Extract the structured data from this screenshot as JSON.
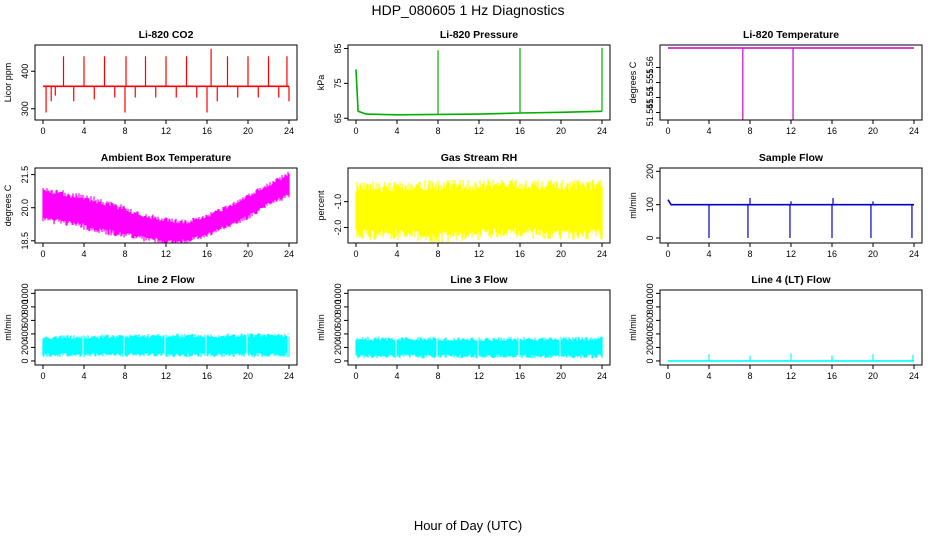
{
  "figure": {
    "title": "HDP_080605  1 Hz Diagnostics",
    "xlabel": "Hour of Day (UTC)"
  },
  "chart_data": [
    {
      "type": "line",
      "title": "Li-820 CO2",
      "ylabel": "Licor ppm",
      "color": "#ff0000",
      "xlim": [
        0,
        24
      ],
      "ylim": [
        270,
        470
      ],
      "xticks": [
        0,
        4,
        8,
        12,
        16,
        20,
        24
      ],
      "yticks": [
        300,
        400
      ],
      "series": [
        {
          "x": [
            0,
            24
          ],
          "values": [
            360,
            360
          ]
        }
      ],
      "spikes": [
        {
          "x": 0.3,
          "to": 290
        },
        {
          "x": 0.8,
          "to": 320
        },
        {
          "x": 1.2,
          "to": 335
        },
        {
          "x": 2.0,
          "to": 440
        },
        {
          "x": 3.0,
          "to": 320
        },
        {
          "x": 4.0,
          "to": 440
        },
        {
          "x": 5.0,
          "to": 325
        },
        {
          "x": 6.0,
          "to": 440
        },
        {
          "x": 7.0,
          "to": 330
        },
        {
          "x": 8.0,
          "to": 290
        },
        {
          "x": 8.1,
          "to": 440
        },
        {
          "x": 9.0,
          "to": 330
        },
        {
          "x": 10.0,
          "to": 440
        },
        {
          "x": 11.0,
          "to": 330
        },
        {
          "x": 12.0,
          "to": 440
        },
        {
          "x": 13.0,
          "to": 330
        },
        {
          "x": 14.0,
          "to": 440
        },
        {
          "x": 15.0,
          "to": 330
        },
        {
          "x": 16.0,
          "to": 290
        },
        {
          "x": 16.4,
          "to": 460
        },
        {
          "x": 17.0,
          "to": 320
        },
        {
          "x": 18.0,
          "to": 440
        },
        {
          "x": 19.0,
          "to": 330
        },
        {
          "x": 20.0,
          "to": 440
        },
        {
          "x": 21.0,
          "to": 330
        },
        {
          "x": 22.0,
          "to": 440
        },
        {
          "x": 23.0,
          "to": 330
        },
        {
          "x": 23.8,
          "to": 440
        },
        {
          "x": 24.0,
          "to": 320
        }
      ]
    },
    {
      "type": "line",
      "title": "Li-820 Pressure",
      "ylabel": "kPa",
      "color": "#00b000",
      "xlim": [
        0,
        24
      ],
      "ylim": [
        64.5,
        86
      ],
      "xticks": [
        0,
        4,
        8,
        12,
        16,
        20,
        24
      ],
      "yticks": [
        65,
        75,
        85
      ],
      "series": [
        {
          "x": [
            0,
            0.2,
            1,
            4,
            8,
            12,
            16,
            20,
            24
          ],
          "values": [
            79,
            67,
            66.2,
            66.0,
            66.1,
            66.2,
            66.5,
            66.7,
            67.0
          ]
        }
      ],
      "spikes": [
        {
          "x": 8.0,
          "to": 84.5
        },
        {
          "x": 16.0,
          "to": 85.2
        },
        {
          "x": 24.0,
          "to": 85.2
        }
      ]
    },
    {
      "type": "line",
      "title": "Li-820 Temperature",
      "ylabel": "degrees C",
      "color": "#cc00cc",
      "xlim": [
        0,
        24
      ],
      "ylim": [
        51.5425,
        51.5675
      ],
      "xticks": [
        0,
        4,
        8,
        12,
        16,
        20,
        24
      ],
      "yticks": [
        51.545,
        51.55,
        51.555,
        51.56
      ],
      "ytick_labels": [
        "51.545",
        "51.55",
        "51.555",
        "51.56"
      ],
      "series": [
        {
          "x": [
            0,
            24
          ],
          "values": [
            51.5665,
            51.5665
          ]
        }
      ],
      "spikes": [
        {
          "x": 7.3,
          "to": 51.5425
        },
        {
          "x": 12.2,
          "to": 51.5425
        }
      ]
    },
    {
      "type": "area",
      "title": "Ambient Box Temperature",
      "ylabel": "degrees C",
      "color": "#ff00ff",
      "xlim": [
        0,
        24
      ],
      "ylim": [
        18.4,
        21.8
      ],
      "xticks": [
        0,
        4,
        8,
        12,
        16,
        20,
        24
      ],
      "yticks": [
        18.5,
        20.0,
        21.5
      ],
      "ytick_labels": [
        "18.5",
        "20.0",
        "21.5"
      ],
      "x": [
        0,
        2,
        4,
        6,
        8,
        10,
        12,
        14,
        16,
        18,
        20,
        22,
        24
      ],
      "upper": [
        20.7,
        20.6,
        20.4,
        20.2,
        19.9,
        19.6,
        19.4,
        19.3,
        19.6,
        20.0,
        20.5,
        21.0,
        21.5
      ],
      "lower": [
        19.5,
        19.4,
        19.2,
        19.0,
        18.8,
        18.6,
        18.5,
        18.5,
        18.8,
        19.2,
        19.6,
        20.2,
        20.6
      ]
    },
    {
      "type": "area",
      "title": "Gas Stream RH",
      "ylabel": "percent",
      "color": "#ffff00",
      "xlim": [
        0,
        24
      ],
      "ylim": [
        -2.6,
        0.3
      ],
      "xticks": [
        0,
        4,
        8,
        12,
        16,
        20,
        24
      ],
      "yticks": [
        -2.0,
        -1.0
      ],
      "ytick_labels": [
        "-2.0",
        "-1.0"
      ],
      "x": [
        0,
        4,
        8,
        12,
        16,
        20,
        24
      ],
      "upper": [
        -0.5,
        -0.5,
        -0.45,
        -0.45,
        -0.4,
        -0.45,
        -0.45
      ],
      "lower": [
        -2.2,
        -2.2,
        -2.3,
        -2.2,
        -2.1,
        -2.2,
        -2.2
      ]
    },
    {
      "type": "line",
      "title": "Sample Flow",
      "ylabel": "ml/min",
      "color": "#0000cc",
      "xlim": [
        0,
        24
      ],
      "ylim": [
        -15,
        210
      ],
      "xticks": [
        0,
        4,
        8,
        12,
        16,
        20,
        24
      ],
      "yticks": [
        0,
        100,
        200
      ],
      "series": [
        {
          "x": [
            0,
            0.3,
            24
          ],
          "values": [
            115,
            100,
            100
          ]
        }
      ],
      "spikes": [
        {
          "x": 4.0,
          "to": 0
        },
        {
          "x": 7.8,
          "to": 0
        },
        {
          "x": 8.0,
          "to": 120
        },
        {
          "x": 11.9,
          "to": 0
        },
        {
          "x": 12.0,
          "to": 110
        },
        {
          "x": 16.0,
          "to": 0
        },
        {
          "x": 16.1,
          "to": 120
        },
        {
          "x": 19.8,
          "to": 0
        },
        {
          "x": 20.0,
          "to": 110
        },
        {
          "x": 23.8,
          "to": 0
        }
      ]
    },
    {
      "type": "area",
      "title": "Line 2 Flow",
      "ylabel": "ml/min",
      "color": "#00ffff",
      "xlim": [
        0,
        24
      ],
      "ylim": [
        -60,
        1050
      ],
      "xticks": [
        0,
        4,
        8,
        12,
        16,
        20,
        24
      ],
      "yticks": [
        0,
        200,
        400,
        600,
        800,
        1000
      ],
      "x": [
        0,
        12,
        24
      ],
      "upper": [
        340,
        360,
        370
      ],
      "lower": [
        100,
        100,
        100
      ],
      "gaps": [
        3.9,
        7.9,
        11.9,
        15.9,
        19.9,
        23.9
      ]
    },
    {
      "type": "area",
      "title": "Line 3 Flow",
      "ylabel": "ml/min",
      "color": "#00ffff",
      "xlim": [
        0,
        24
      ],
      "ylim": [
        -60,
        1050
      ],
      "xticks": [
        0,
        4,
        8,
        12,
        16,
        20,
        24
      ],
      "yticks": [
        0,
        200,
        400,
        600,
        800,
        1000
      ],
      "x": [
        0,
        12,
        24
      ],
      "upper": [
        320,
        310,
        320
      ],
      "lower": [
        80,
        80,
        80
      ],
      "gaps": [
        3.9,
        7.9,
        11.9,
        15.9,
        19.9
      ]
    },
    {
      "type": "line",
      "title": "Line 4 (LT) Flow",
      "ylabel": "ml/min",
      "color": "#00ffff",
      "xlim": [
        0,
        24
      ],
      "ylim": [
        -60,
        1050
      ],
      "xticks": [
        0,
        4,
        8,
        12,
        16,
        20,
        24
      ],
      "yticks": [
        0,
        200,
        400,
        600,
        800,
        1000
      ],
      "series": [
        {
          "x": [
            0,
            24
          ],
          "values": [
            0,
            0
          ]
        }
      ],
      "spikes": [
        {
          "x": 4.0,
          "to": 100
        },
        {
          "x": 8.0,
          "to": 80
        },
        {
          "x": 12.0,
          "to": 110
        },
        {
          "x": 16.0,
          "to": 80
        },
        {
          "x": 20.0,
          "to": 100
        },
        {
          "x": 23.9,
          "to": 90
        }
      ]
    }
  ]
}
